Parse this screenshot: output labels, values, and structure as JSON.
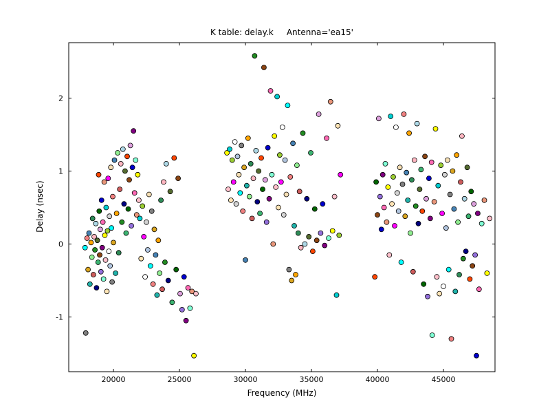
{
  "chart_data": {
    "type": "scatter",
    "title": "K table: delay.k     Antenna='ea15'",
    "xlabel": "Frequency (MHz)",
    "ylabel": "Delay (nsec)",
    "xlim": [
      16615,
      48906
    ],
    "ylim": [
      -1.75,
      2.76
    ],
    "xticks": [
      20000,
      25000,
      30000,
      35000,
      40000,
      45000
    ],
    "yticks": [
      -1,
      0,
      1,
      2
    ],
    "grid": false,
    "legend": null,
    "marker": {
      "radius": 3.5,
      "edge_color": "#000000",
      "edge_width": 0.8
    },
    "axes_color": "#000000",
    "background_color": "#ffffff",
    "palette": [
      "#00ffff",
      "#ff00ff",
      "#ffff00",
      "#0000cd",
      "#ff4500",
      "#228b22",
      "#ffa500",
      "#808080",
      "#ffffff",
      "#ffc0cb",
      "#800080",
      "#006400",
      "#add8e6",
      "#90ee90",
      "#f08080",
      "#d3d3d3",
      "#00ced1",
      "#ff69b4",
      "#8b4513",
      "#000080",
      "#2e8b57",
      "#daa520",
      "#b0c4de",
      "#ffe4b5",
      "#7fffd4",
      "#dda0dd",
      "#556b2f",
      "#cd5c5c",
      "#4682b4",
      "#f5deb3",
      "#9acd32",
      "#e9967a",
      "#9370db",
      "#3cb371",
      "#ffb6c1",
      "#20b2aa"
    ],
    "points": [
      [
        17850,
        -0.05,
        0
      ],
      [
        17900,
        -1.22,
        7
      ],
      [
        18000,
        0.08,
        14
      ],
      [
        18080,
        -0.35,
        21
      ],
      [
        18150,
        0.15,
        28
      ],
      [
        18220,
        -0.55,
        35
      ],
      [
        18300,
        0.02,
        6
      ],
      [
        18370,
        -0.18,
        13
      ],
      [
        18420,
        0.35,
        20
      ],
      [
        18480,
        -0.42,
        27
      ],
      [
        18540,
        0.1,
        34
      ],
      [
        18600,
        -0.08,
        5
      ],
      [
        18660,
        0.28,
        12
      ],
      [
        18720,
        -0.6,
        19
      ],
      [
        18780,
        0.05,
        26
      ],
      [
        18840,
        -0.25,
        33
      ],
      [
        18880,
        0.95,
        4
      ],
      [
        18920,
        0.45,
        11
      ],
      [
        18960,
        -0.15,
        18
      ],
      [
        19000,
        0.2,
        25
      ],
      [
        19050,
        -0.38,
        32
      ],
      [
        19100,
        0.6,
        3
      ],
      [
        19150,
        -0.05,
        10
      ],
      [
        19200,
        0.3,
        17
      ],
      [
        19250,
        -0.48,
        24
      ],
      [
        19300,
        0.85,
        31
      ],
      [
        19350,
        0.12,
        2
      ],
      [
        19400,
        -0.22,
        9
      ],
      [
        19450,
        0.5,
        16
      ],
      [
        19500,
        -0.65,
        23
      ],
      [
        19550,
        0.18,
        30
      ],
      [
        19600,
        0.9,
        1
      ],
      [
        19650,
        -0.1,
        8
      ],
      [
        19700,
        0.38,
        15
      ],
      [
        19750,
        -0.3,
        22
      ],
      [
        19800,
        1.05,
        29
      ],
      [
        19850,
        0.22,
        0
      ],
      [
        19900,
        -0.52,
        7
      ],
      [
        19950,
        0.65,
        14
      ],
      [
        20000,
        0.02,
        21
      ],
      [
        20080,
        1.15,
        28
      ],
      [
        20160,
        -0.4,
        35
      ],
      [
        20240,
        0.42,
        6
      ],
      [
        20320,
        1.25,
        13
      ],
      [
        20400,
        -0.12,
        20
      ],
      [
        20480,
        0.75,
        27
      ],
      [
        20560,
        1.1,
        34
      ],
      [
        20640,
        0.3,
        5
      ],
      [
        20720,
        1.3,
        12
      ],
      [
        20800,
        0.55,
        19
      ],
      [
        20880,
        1.0,
        26
      ],
      [
        20960,
        0.15,
        33
      ],
      [
        21040,
        1.2,
        4
      ],
      [
        21120,
        0.48,
        11
      ],
      [
        21200,
        0.88,
        18
      ],
      [
        21280,
        1.35,
        25
      ],
      [
        21360,
        0.25,
        32
      ],
      [
        21440,
        1.05,
        3
      ],
      [
        21520,
        1.55,
        10
      ],
      [
        21600,
        0.7,
        17
      ],
      [
        21680,
        1.15,
        24
      ],
      [
        21760,
        0.4,
        31
      ],
      [
        21840,
        0.95,
        2
      ],
      [
        21920,
        0.6,
        9
      ],
      [
        22000,
        0.35,
        16
      ],
      [
        22100,
        -0.2,
        23
      ],
      [
        22200,
        0.52,
        30
      ],
      [
        22300,
        0.1,
        1
      ],
      [
        22400,
        -0.45,
        8
      ],
      [
        22500,
        0.3,
        15
      ],
      [
        22600,
        -0.08,
        22
      ],
      [
        22700,
        0.68,
        29
      ],
      [
        22800,
        -0.3,
        0
      ],
      [
        22900,
        0.45,
        7
      ],
      [
        23000,
        -0.55,
        14
      ],
      [
        23100,
        0.2,
        21
      ],
      [
        23200,
        -0.15,
        28
      ],
      [
        23300,
        -0.7,
        35
      ],
      [
        23400,
        0.05,
        6
      ],
      [
        23500,
        -0.4,
        13
      ],
      [
        23600,
        0.6,
        20
      ],
      [
        23700,
        -0.62,
        27
      ],
      [
        23800,
        0.85,
        34
      ],
      [
        23900,
        -0.25,
        5
      ],
      [
        24000,
        1.1,
        12
      ],
      [
        24150,
        -0.5,
        19
      ],
      [
        24300,
        0.72,
        26
      ],
      [
        24450,
        -0.8,
        33
      ],
      [
        24600,
        1.18,
        4
      ],
      [
        24750,
        -0.35,
        11
      ],
      [
        24900,
        0.9,
        18
      ],
      [
        25050,
        -0.68,
        25
      ],
      [
        25200,
        -0.9,
        32
      ],
      [
        25350,
        -0.45,
        3
      ],
      [
        25500,
        -1.05,
        10
      ],
      [
        25650,
        -0.6,
        17
      ],
      [
        25800,
        -0.88,
        24
      ],
      [
        25950,
        -0.65,
        31
      ],
      [
        26100,
        -1.53,
        2
      ],
      [
        26250,
        -0.68,
        9
      ],
      [
        28600,
        1.25,
        2
      ],
      [
        28700,
        0.75,
        9
      ],
      [
        28800,
        1.3,
        16
      ],
      [
        28900,
        0.6,
        23
      ],
      [
        29000,
        1.15,
        30
      ],
      [
        29100,
        0.85,
        1
      ],
      [
        29200,
        1.4,
        8
      ],
      [
        29300,
        0.55,
        15
      ],
      [
        29400,
        1.2,
        22
      ],
      [
        29500,
        0.95,
        29
      ],
      [
        29600,
        0.7,
        0
      ],
      [
        29700,
        1.35,
        7
      ],
      [
        29800,
        0.45,
        14
      ],
      [
        29900,
        1.05,
        21
      ],
      [
        30000,
        -0.22,
        28
      ],
      [
        30100,
        0.8,
        35
      ],
      [
        30200,
        1.45,
        6
      ],
      [
        30300,
        0.65,
        13
      ],
      [
        30400,
        1.1,
        20
      ],
      [
        30500,
        0.35,
        27
      ],
      [
        30600,
        0.9,
        34
      ],
      [
        30700,
        2.58,
        5
      ],
      [
        30800,
        1.28,
        12
      ],
      [
        30900,
        0.58,
        19
      ],
      [
        31000,
        1.0,
        26
      ],
      [
        31100,
        0.42,
        33
      ],
      [
        31200,
        1.18,
        4
      ],
      [
        31300,
        0.75,
        11
      ],
      [
        31400,
        2.42,
        18
      ],
      [
        31500,
        0.88,
        25
      ],
      [
        31600,
        0.3,
        32
      ],
      [
        31700,
        1.32,
        3
      ],
      [
        31800,
        0.62,
        10
      ],
      [
        31900,
        2.1,
        17
      ],
      [
        32000,
        0.95,
        24
      ],
      [
        32100,
        0.0,
        31
      ],
      [
        32200,
        1.48,
        2
      ],
      [
        32300,
        0.78,
        9
      ],
      [
        32400,
        2.02,
        16
      ],
      [
        32500,
        0.5,
        23
      ],
      [
        32600,
        1.22,
        30
      ],
      [
        32700,
        0.85,
        1
      ],
      [
        32800,
        1.6,
        8
      ],
      [
        32900,
        0.4,
        15
      ],
      [
        33000,
        1.15,
        22
      ],
      [
        33100,
        0.68,
        29
      ],
      [
        33200,
        1.9,
        0
      ],
      [
        33300,
        -0.35,
        7
      ],
      [
        33400,
        0.92,
        14
      ],
      [
        33500,
        -0.5,
        21
      ],
      [
        33600,
        1.38,
        28
      ],
      [
        33700,
        0.25,
        35
      ],
      [
        33800,
        -0.42,
        6
      ],
      [
        33900,
        1.08,
        13
      ],
      [
        34000,
        0.15,
        20
      ],
      [
        34100,
        0.72,
        27
      ],
      [
        34200,
        -0.05,
        34
      ],
      [
        34350,
        1.52,
        5
      ],
      [
        34500,
        0.0,
        12
      ],
      [
        34650,
        0.62,
        19
      ],
      [
        34800,
        0.1,
        26
      ],
      [
        34950,
        1.25,
        33
      ],
      [
        35100,
        -0.1,
        4
      ],
      [
        35250,
        0.48,
        11
      ],
      [
        35400,
        0.05,
        18
      ],
      [
        35550,
        1.78,
        25
      ],
      [
        35700,
        0.15,
        32
      ],
      [
        35850,
        0.55,
        3
      ],
      [
        36000,
        -0.02,
        10
      ],
      [
        36150,
        1.45,
        17
      ],
      [
        36300,
        0.08,
        24
      ],
      [
        36450,
        1.95,
        31
      ],
      [
        36600,
        0.18,
        2
      ],
      [
        36750,
        0.65,
        9
      ],
      [
        36900,
        -0.7,
        16
      ],
      [
        37000,
        1.62,
        23
      ],
      [
        37100,
        0.12,
        30
      ],
      [
        37200,
        0.95,
        1
      ],
      [
        39800,
        -0.45,
        4
      ],
      [
        39900,
        0.85,
        11
      ],
      [
        40000,
        0.4,
        18
      ],
      [
        40100,
        1.72,
        25
      ],
      [
        40200,
        0.65,
        32
      ],
      [
        40300,
        0.2,
        3
      ],
      [
        40400,
        0.95,
        10
      ],
      [
        40500,
        0.5,
        17
      ],
      [
        40600,
        1.1,
        24
      ],
      [
        40700,
        0.3,
        31
      ],
      [
        40800,
        0.78,
        2
      ],
      [
        40900,
        -0.15,
        9
      ],
      [
        41000,
        1.75,
        16
      ],
      [
        41100,
        0.55,
        23
      ],
      [
        41200,
        0.92,
        30
      ],
      [
        41300,
        0.25,
        1
      ],
      [
        41400,
        1.6,
        8
      ],
      [
        41500,
        0.7,
        15
      ],
      [
        41600,
        0.45,
        22
      ],
      [
        41700,
        1.05,
        29
      ],
      [
        41800,
        -0.25,
        0
      ],
      [
        41900,
        0.82,
        7
      ],
      [
        42000,
        1.78,
        14
      ],
      [
        42100,
        0.38,
        21
      ],
      [
        42200,
        0.98,
        28
      ],
      [
        42300,
        0.6,
        35
      ],
      [
        42400,
        1.52,
        6
      ],
      [
        42500,
        0.15,
        13
      ],
      [
        42600,
        0.88,
        20
      ],
      [
        42700,
        -0.38,
        27
      ],
      [
        42800,
        1.15,
        34
      ],
      [
        42900,
        0.52,
        5
      ],
      [
        43000,
        1.65,
        12
      ],
      [
        43100,
        0.28,
        19
      ],
      [
        43200,
        0.75,
        26
      ],
      [
        43300,
        1.02,
        33
      ],
      [
        43400,
        0.45,
        4
      ],
      [
        43500,
        -0.55,
        11
      ],
      [
        43600,
        1.2,
        18
      ],
      [
        43700,
        0.62,
        25
      ],
      [
        43800,
        -0.72,
        32
      ],
      [
        43900,
        0.9,
        3
      ],
      [
        44000,
        0.35,
        10
      ],
      [
        44100,
        1.12,
        17
      ],
      [
        44150,
        -1.25,
        24
      ],
      [
        44300,
        0.58,
        31
      ],
      [
        44400,
        1.58,
        2
      ],
      [
        44500,
        -0.45,
        9
      ],
      [
        44600,
        0.8,
        16
      ],
      [
        44700,
        -0.68,
        23
      ],
      [
        44800,
        1.08,
        30
      ],
      [
        44900,
        0.42,
        1
      ],
      [
        45000,
        -0.58,
        8
      ],
      [
        45100,
        0.95,
        15
      ],
      [
        45200,
        0.22,
        22
      ],
      [
        45300,
        1.15,
        29
      ],
      [
        45400,
        -0.35,
        0
      ],
      [
        45500,
        0.68,
        7
      ],
      [
        45600,
        -1.3,
        14
      ],
      [
        45700,
        1.0,
        21
      ],
      [
        45800,
        0.48,
        28
      ],
      [
        45900,
        -0.65,
        35
      ],
      [
        46000,
        1.22,
        6
      ],
      [
        46100,
        0.3,
        13
      ],
      [
        46200,
        -0.42,
        20
      ],
      [
        46300,
        0.85,
        27
      ],
      [
        46400,
        1.48,
        34
      ],
      [
        46500,
        -0.2,
        5
      ],
      [
        46600,
        0.62,
        12
      ],
      [
        46700,
        -0.1,
        19
      ],
      [
        46800,
        1.05,
        26
      ],
      [
        46900,
        0.38,
        33
      ],
      [
        47000,
        -0.48,
        4
      ],
      [
        47100,
        0.72,
        11
      ],
      [
        47200,
        -0.3,
        18
      ],
      [
        47300,
        0.55,
        25
      ],
      [
        47400,
        -0.15,
        32
      ],
      [
        47500,
        -1.53,
        3
      ],
      [
        47600,
        0.42,
        10
      ],
      [
        47700,
        -0.62,
        17
      ],
      [
        47900,
        0.28,
        24
      ],
      [
        48100,
        0.6,
        31
      ],
      [
        48300,
        -0.4,
        2
      ],
      [
        48500,
        0.35,
        9
      ]
    ]
  }
}
